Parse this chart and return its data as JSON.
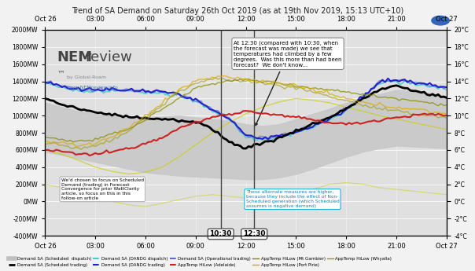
{
  "title": "Trend of SA Demand on Saturday 26th Oct 2019 (as at 19th Nov 2019, 15:13 UTC+10)",
  "bg_color": "#f2f2f2",
  "plot_bg": "#e0e0e0",
  "ylim_left": [
    -400,
    2000
  ],
  "ylim_right": [
    -4,
    20
  ],
  "yticks_left": [
    -400,
    -200,
    0,
    200,
    400,
    600,
    800,
    1000,
    1200,
    1400,
    1600,
    1800,
    2000
  ],
  "yticks_right": [
    -4,
    -2,
    0,
    2,
    4,
    6,
    8,
    10,
    12,
    14,
    16,
    18,
    20
  ],
  "xlim": [
    0,
    144
  ],
  "xtick_labels": [
    "Oct 26",
    "03:00",
    "06:00",
    "09:00",
    "12:00",
    "15:00",
    "18:00",
    "21:00",
    "Oct 27"
  ],
  "xtick_positions": [
    0,
    18,
    36,
    54,
    72,
    90,
    108,
    126,
    144
  ],
  "annotation1_text": "At 12:30 (compared with 10:30, when\nthe forecast was made) we see that\ntemperatures had climbed by a few\ndegrees.  Was this more than had been\nforecast?  We don't know...",
  "annotation2_text": "We'd chosen to focus on Scheduled\nDemand (trading) in Forecast\nConvergence for prior WattClarity\narticle, so focus on this in this\nfollow-on article",
  "annotation3_text": "These alternate measures are higher,\nbecause they include the effect of Non-\nScheduled generation (which Scheduled\nassumes is negative demand)",
  "marker1030": "10:30",
  "marker1230": "12:30",
  "x_1030": 63,
  "x_1230": 75
}
